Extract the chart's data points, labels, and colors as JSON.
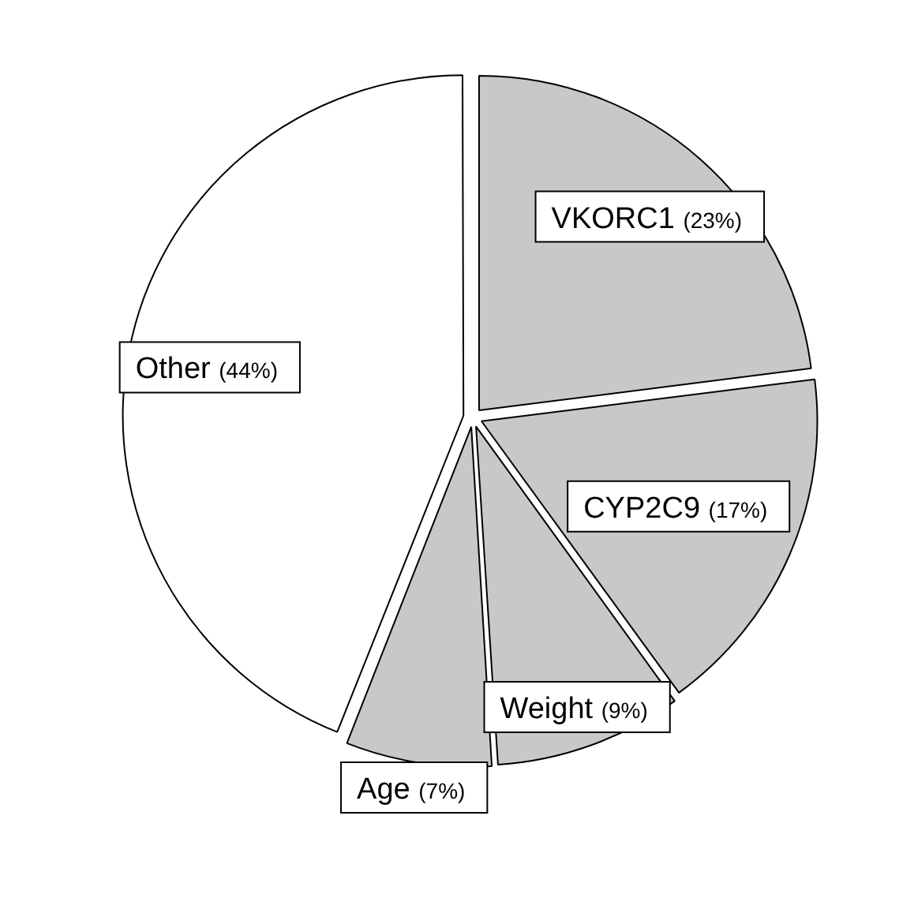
{
  "chart_data": {
    "type": "pie",
    "categories": [
      "VKORC1",
      "CYP2C9",
      "Weight",
      "Age",
      "Other"
    ],
    "values": [
      23,
      17,
      9,
      7,
      44
    ],
    "value_labels": [
      "(23%)",
      "(17%)",
      "(9%)",
      "(7%)",
      "(44%)"
    ],
    "colors": [
      "#c8c8c8",
      "#c8c8c8",
      "#c8c8c8",
      "#c8c8c8",
      "#ffffff"
    ],
    "legend": false
  }
}
